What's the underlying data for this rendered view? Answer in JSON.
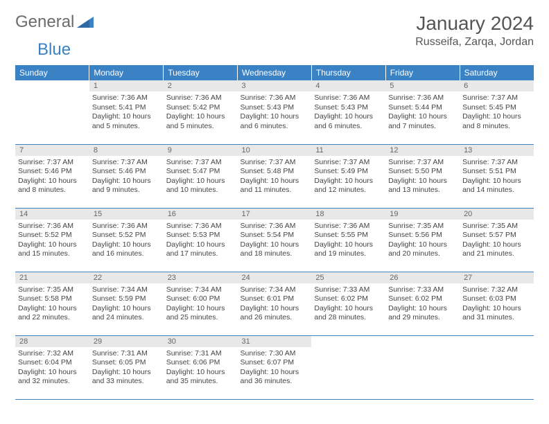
{
  "brand": {
    "part1": "General",
    "part2": "Blue"
  },
  "title": "January 2024",
  "location": "Russeifa, Zarqa, Jordan",
  "colors": {
    "header_bg": "#3b82c4",
    "header_text": "#ffffff",
    "daynum_bg": "#e8e8e8",
    "row_border": "#3b82c4",
    "brand_gray": "#6b6b6b",
    "brand_blue": "#3b82c4"
  },
  "weekdays": [
    "Sunday",
    "Monday",
    "Tuesday",
    "Wednesday",
    "Thursday",
    "Friday",
    "Saturday"
  ],
  "weeks": [
    [
      null,
      {
        "n": "1",
        "sunrise": "7:36 AM",
        "sunset": "5:41 PM",
        "dl": "10 hours and 5 minutes."
      },
      {
        "n": "2",
        "sunrise": "7:36 AM",
        "sunset": "5:42 PM",
        "dl": "10 hours and 5 minutes."
      },
      {
        "n": "3",
        "sunrise": "7:36 AM",
        "sunset": "5:43 PM",
        "dl": "10 hours and 6 minutes."
      },
      {
        "n": "4",
        "sunrise": "7:36 AM",
        "sunset": "5:43 PM",
        "dl": "10 hours and 6 minutes."
      },
      {
        "n": "5",
        "sunrise": "7:36 AM",
        "sunset": "5:44 PM",
        "dl": "10 hours and 7 minutes."
      },
      {
        "n": "6",
        "sunrise": "7:37 AM",
        "sunset": "5:45 PM",
        "dl": "10 hours and 8 minutes."
      }
    ],
    [
      {
        "n": "7",
        "sunrise": "7:37 AM",
        "sunset": "5:46 PM",
        "dl": "10 hours and 8 minutes."
      },
      {
        "n": "8",
        "sunrise": "7:37 AM",
        "sunset": "5:46 PM",
        "dl": "10 hours and 9 minutes."
      },
      {
        "n": "9",
        "sunrise": "7:37 AM",
        "sunset": "5:47 PM",
        "dl": "10 hours and 10 minutes."
      },
      {
        "n": "10",
        "sunrise": "7:37 AM",
        "sunset": "5:48 PM",
        "dl": "10 hours and 11 minutes."
      },
      {
        "n": "11",
        "sunrise": "7:37 AM",
        "sunset": "5:49 PM",
        "dl": "10 hours and 12 minutes."
      },
      {
        "n": "12",
        "sunrise": "7:37 AM",
        "sunset": "5:50 PM",
        "dl": "10 hours and 13 minutes."
      },
      {
        "n": "13",
        "sunrise": "7:37 AM",
        "sunset": "5:51 PM",
        "dl": "10 hours and 14 minutes."
      }
    ],
    [
      {
        "n": "14",
        "sunrise": "7:36 AM",
        "sunset": "5:52 PM",
        "dl": "10 hours and 15 minutes."
      },
      {
        "n": "15",
        "sunrise": "7:36 AM",
        "sunset": "5:52 PM",
        "dl": "10 hours and 16 minutes."
      },
      {
        "n": "16",
        "sunrise": "7:36 AM",
        "sunset": "5:53 PM",
        "dl": "10 hours and 17 minutes."
      },
      {
        "n": "17",
        "sunrise": "7:36 AM",
        "sunset": "5:54 PM",
        "dl": "10 hours and 18 minutes."
      },
      {
        "n": "18",
        "sunrise": "7:36 AM",
        "sunset": "5:55 PM",
        "dl": "10 hours and 19 minutes."
      },
      {
        "n": "19",
        "sunrise": "7:35 AM",
        "sunset": "5:56 PM",
        "dl": "10 hours and 20 minutes."
      },
      {
        "n": "20",
        "sunrise": "7:35 AM",
        "sunset": "5:57 PM",
        "dl": "10 hours and 21 minutes."
      }
    ],
    [
      {
        "n": "21",
        "sunrise": "7:35 AM",
        "sunset": "5:58 PM",
        "dl": "10 hours and 22 minutes."
      },
      {
        "n": "22",
        "sunrise": "7:34 AM",
        "sunset": "5:59 PM",
        "dl": "10 hours and 24 minutes."
      },
      {
        "n": "23",
        "sunrise": "7:34 AM",
        "sunset": "6:00 PM",
        "dl": "10 hours and 25 minutes."
      },
      {
        "n": "24",
        "sunrise": "7:34 AM",
        "sunset": "6:01 PM",
        "dl": "10 hours and 26 minutes."
      },
      {
        "n": "25",
        "sunrise": "7:33 AM",
        "sunset": "6:02 PM",
        "dl": "10 hours and 28 minutes."
      },
      {
        "n": "26",
        "sunrise": "7:33 AM",
        "sunset": "6:02 PM",
        "dl": "10 hours and 29 minutes."
      },
      {
        "n": "27",
        "sunrise": "7:32 AM",
        "sunset": "6:03 PM",
        "dl": "10 hours and 31 minutes."
      }
    ],
    [
      {
        "n": "28",
        "sunrise": "7:32 AM",
        "sunset": "6:04 PM",
        "dl": "10 hours and 32 minutes."
      },
      {
        "n": "29",
        "sunrise": "7:31 AM",
        "sunset": "6:05 PM",
        "dl": "10 hours and 33 minutes."
      },
      {
        "n": "30",
        "sunrise": "7:31 AM",
        "sunset": "6:06 PM",
        "dl": "10 hours and 35 minutes."
      },
      {
        "n": "31",
        "sunrise": "7:30 AM",
        "sunset": "6:07 PM",
        "dl": "10 hours and 36 minutes."
      },
      null,
      null,
      null
    ]
  ],
  "labels": {
    "sunrise": "Sunrise: ",
    "sunset": "Sunset: ",
    "daylight": "Daylight: "
  }
}
